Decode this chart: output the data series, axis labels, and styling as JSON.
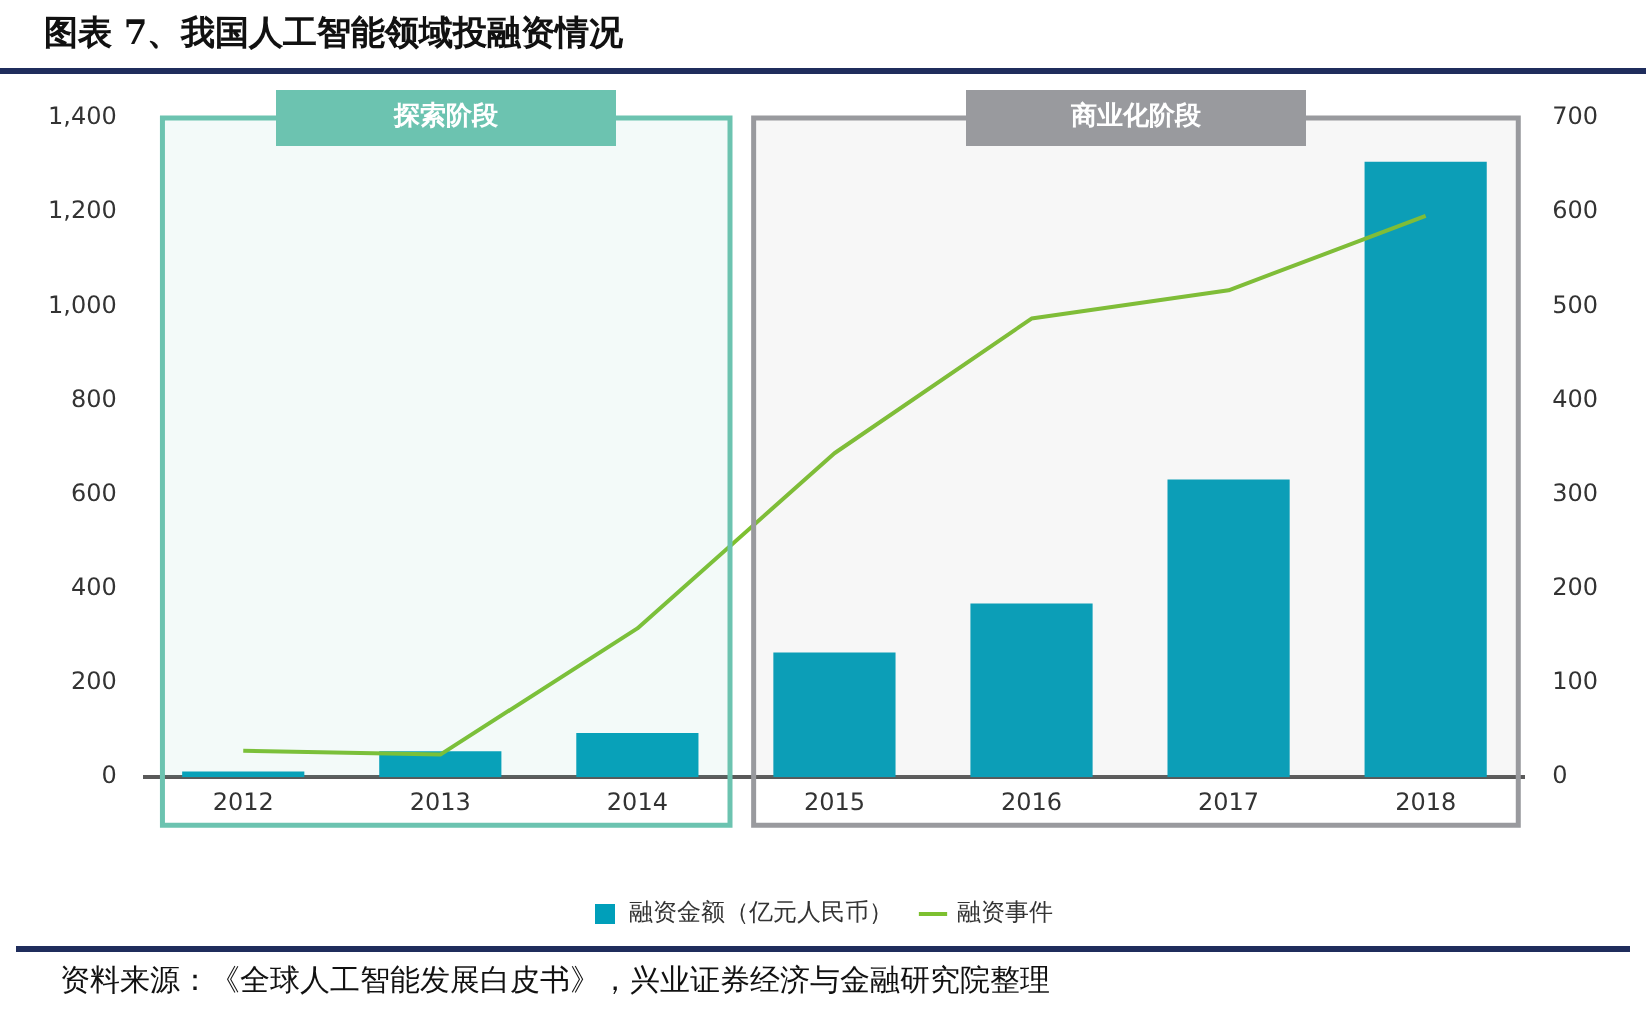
{
  "chart_data": {
    "type": "bar",
    "title": "图表 7、我国人工智能领域投融资情况",
    "categories": [
      "2012",
      "2013",
      "2014",
      "2015",
      "2016",
      "2017",
      "2018"
    ],
    "series": [
      {
        "name": "融资金额（亿元人民币）",
        "color": "#009fba",
        "values": [
          12,
          55,
          94,
          265,
          369,
          632,
          1307
        ]
      },
      {
        "name": "融资事件",
        "type": "line",
        "axis": "y2",
        "color": "#7dc030",
        "values": [
          28,
          24,
          158,
          344,
          487,
          517,
          596
        ]
      }
    ],
    "ylim": [
      0,
      1400
    ],
    "yticks": [
      0,
      200,
      400,
      600,
      800,
      {
        "value": 1000,
        "label": "1,000"
      },
      {
        "value": 1200,
        "label": "1,200"
      },
      {
        "value": 1400,
        "label": "1,400"
      }
    ],
    "y2lim": [
      0,
      700
    ],
    "y2ticks": [
      0,
      100,
      200,
      300,
      400,
      500,
      600,
      700
    ],
    "bands": [
      {
        "axis": "x",
        "from": "2012",
        "to": "2014",
        "label": "探索阶段",
        "color": "#6cc3b0"
      },
      {
        "axis": "x",
        "from": "2015",
        "to": "2018",
        "label": "商业化阶段",
        "color": "#999a9e"
      }
    ],
    "grid": false,
    "legend": "bottom",
    "marker": "none",
    "line_style": "solid",
    "annotations": [
      "资料来源：《全球人工智能发展白皮书》，兴业证券经济与金融研究院整理"
    ]
  }
}
